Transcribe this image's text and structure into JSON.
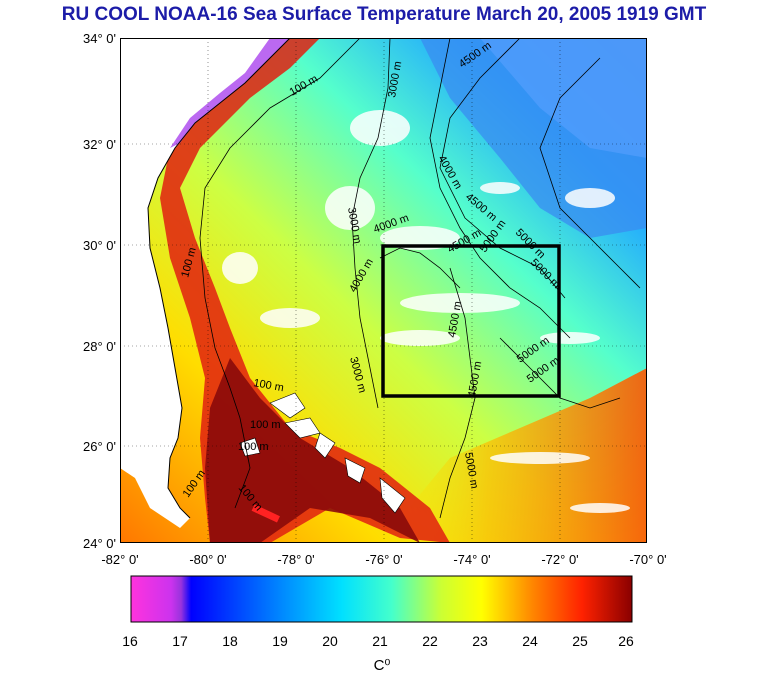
{
  "title": "RU COOL  NOAA-16 Sea Surface Temperature March 20, 2005 1919 GMT",
  "lat_labels": [
    "34° 0'",
    "32° 0'",
    "30° 0'",
    "28° 0'",
    "26° 0'",
    "24° 0'"
  ],
  "lon_labels": [
    "-82° 0'",
    "-80° 0'",
    "-78° 0'",
    "-76° 0'",
    "-74° 0'",
    "-72° 0'",
    "-70° 0'"
  ],
  "lat_range": [
    24,
    34
  ],
  "lon_range": [
    -82,
    -70
  ],
  "study_box": {
    "lon": [
      -76,
      -72
    ],
    "lat": [
      27,
      30
    ]
  },
  "depth_labels": [
    "100 m",
    "100 m",
    "100 m",
    "100 m",
    "100 m",
    "100 m",
    "100 m",
    "3000 m",
    "3000 m",
    "4000 m",
    "4000 m",
    "4500 m",
    "4500 m",
    "4500 m",
    "4500 m",
    "4500 m",
    "5000 m",
    "5000 m",
    "5000 m",
    "5000 m",
    "5000 m",
    "5000 m",
    "3000 m",
    "4000 m"
  ],
  "colorbar": {
    "ticks": [
      "16",
      "17",
      "18",
      "19",
      "20",
      "21",
      "22",
      "23",
      "24",
      "25",
      "26"
    ],
    "range": [
      16,
      26
    ],
    "unit": "C⁰",
    "colors": [
      "#ff33dd",
      "#9933dd",
      "#0000ff",
      "#0088ff",
      "#00e0ff",
      "#44ffcc",
      "#ccff33",
      "#ffff00",
      "#ff8800",
      "#ff2200",
      "#8a0000"
    ]
  },
  "colors": {
    "title": "#1c1ca8",
    "land": "#ffffff",
    "box": "#000000"
  }
}
